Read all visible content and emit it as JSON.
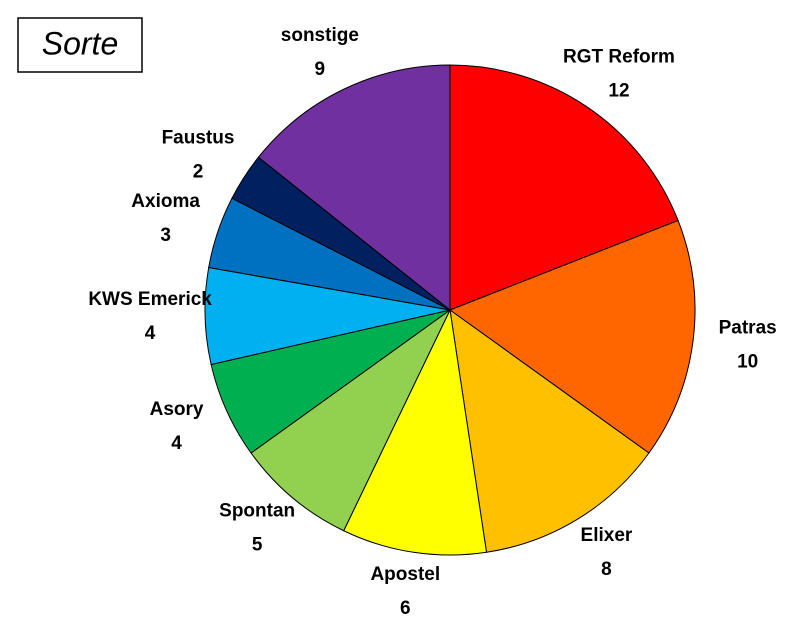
{
  "chart_data": {
    "type": "pie",
    "title": "Sorte",
    "categories": [
      "RGT Reform",
      "Patras",
      "Elixer",
      "Apostel",
      "Spontan",
      "Asory",
      "KWS Emerick",
      "Axioma",
      "Faustus",
      "sonstige"
    ],
    "values": [
      12,
      10,
      8,
      6,
      5,
      4,
      4,
      3,
      2,
      9
    ],
    "colors": [
      "#ff0000",
      "#ff6600",
      "#ffc000",
      "#ffff00",
      "#92d050",
      "#00b050",
      "#00b0f0",
      "#0070c0",
      "#002060",
      "#7030a0"
    ]
  }
}
